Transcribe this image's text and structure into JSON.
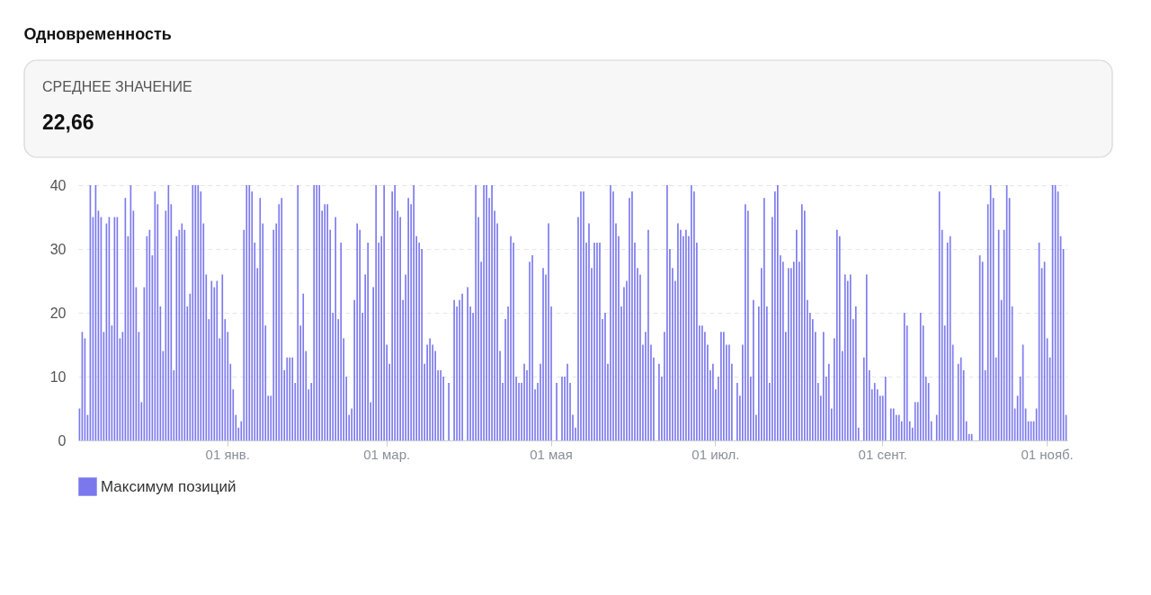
{
  "chart_data": {
    "type": "bar",
    "title": "Одновременность",
    "annotations": [
      "СРЕДНЕЕ ЗНАЧЕНИЕ",
      "22,66"
    ],
    "categories": [
      null,
      null,
      null,
      null,
      null,
      null,
      null,
      null,
      null,
      null,
      null,
      null,
      null,
      null,
      null,
      null,
      null,
      null,
      null,
      null,
      null,
      null,
      null,
      null,
      null,
      null,
      null,
      null,
      null,
      null,
      null,
      null,
      null,
      null,
      null,
      null,
      null,
      null,
      null,
      null,
      null,
      null,
      null,
      null,
      null,
      null,
      null,
      null,
      null,
      null,
      null,
      null,
      null,
      null,
      null,
      "01 янв.",
      null,
      null,
      null,
      null,
      null,
      null,
      null,
      null,
      null,
      null,
      null,
      null,
      null,
      null,
      null,
      null,
      null,
      null,
      null,
      null,
      null,
      null,
      null,
      null,
      null,
      null,
      null,
      null,
      null,
      null,
      null,
      null,
      null,
      null,
      null,
      null,
      null,
      null,
      null,
      null,
      null,
      null,
      null,
      null,
      null,
      null,
      null,
      null,
      null,
      null,
      null,
      null,
      null,
      null,
      null,
      null,
      null,
      null,
      "01 мар.",
      null,
      null,
      null,
      null,
      null,
      null,
      null,
      null,
      null,
      null,
      null,
      null,
      null,
      null,
      null,
      null,
      null,
      null,
      null,
      null,
      null,
      null,
      null,
      null,
      null,
      null,
      null,
      null,
      null,
      null,
      null,
      null,
      null,
      null,
      null,
      null,
      null,
      null,
      null,
      null,
      null,
      null,
      null,
      null,
      null,
      null,
      null,
      null,
      null,
      null,
      null,
      null,
      null,
      null,
      null,
      null,
      null,
      null,
      null,
      null,
      "01 мая",
      null,
      null,
      null,
      null,
      null,
      null,
      null,
      null,
      null,
      null,
      null,
      null,
      null,
      null,
      null,
      null,
      null,
      null,
      null,
      null,
      null,
      null,
      null,
      null,
      null,
      null,
      null,
      null,
      null,
      null,
      null,
      null,
      null,
      null,
      null,
      null,
      null,
      null,
      null,
      null,
      null,
      null,
      null,
      null,
      null,
      null,
      null,
      null,
      null,
      null,
      null,
      null,
      null,
      null,
      null,
      null,
      null,
      null,
      null,
      null,
      "01 июл.",
      null,
      null,
      null,
      null,
      null,
      null,
      null,
      null,
      null,
      null,
      null,
      null,
      null,
      null,
      null,
      null,
      null,
      null,
      null,
      null,
      null,
      null,
      null,
      null,
      null,
      null,
      null,
      null,
      null,
      null,
      null,
      null,
      null,
      null,
      null,
      null,
      null,
      null,
      null,
      null,
      null,
      null,
      null,
      null,
      null,
      null,
      null,
      null,
      null,
      null,
      null,
      null,
      null,
      null,
      null,
      null,
      null,
      null,
      null,
      null,
      null,
      "01 сент.",
      null,
      null,
      null,
      null,
      null,
      null,
      null,
      null,
      null,
      null,
      null,
      null,
      null,
      null,
      null,
      null,
      null,
      null,
      null,
      null,
      null,
      null,
      null,
      null,
      null,
      null,
      null,
      null,
      null,
      null,
      null,
      null,
      null,
      null,
      null,
      null,
      null,
      null,
      null,
      null,
      null,
      null,
      null,
      null,
      null,
      null,
      null,
      null,
      null,
      null,
      null,
      null,
      null,
      null,
      null,
      null,
      null,
      null,
      null,
      null,
      "01 нояб.",
      null,
      null,
      null,
      null,
      null,
      null,
      null
    ],
    "series": [
      {
        "name": "Максимум позиций",
        "color": "#7b78ee",
        "values": [
          5,
          17,
          16,
          4,
          40,
          35,
          40,
          36,
          35,
          17,
          34,
          35,
          18,
          35,
          35,
          16,
          17,
          38,
          32,
          40,
          36,
          24,
          17,
          6,
          24,
          32,
          33,
          29,
          39,
          37,
          21,
          14,
          36,
          40,
          37,
          11,
          32,
          33,
          34,
          33,
          21,
          23,
          40,
          40,
          40,
          39,
          34,
          26,
          19,
          25,
          24,
          25,
          16,
          26,
          19,
          17,
          12,
          8,
          4,
          2,
          3,
          33,
          40,
          40,
          39,
          31,
          27,
          38,
          34,
          18,
          7,
          7,
          33,
          34,
          37,
          38,
          11,
          13,
          13,
          13,
          9,
          40,
          18,
          23,
          14,
          8,
          9,
          40,
          40,
          40,
          36,
          37,
          37,
          33,
          20,
          35,
          19,
          31,
          16,
          10,
          4,
          5,
          22,
          34,
          33,
          20,
          26,
          31,
          6,
          24,
          40,
          31,
          32,
          40,
          15,
          12,
          39,
          40,
          36,
          35,
          22,
          26,
          38,
          37,
          40,
          32,
          31,
          30,
          12,
          15,
          16,
          15,
          14,
          11,
          11,
          10,
          0,
          9,
          0,
          22,
          21,
          22,
          23,
          0,
          24,
          21,
          20,
          40,
          35,
          28,
          40,
          40,
          38,
          40,
          36,
          34,
          14,
          9,
          19,
          21,
          32,
          31,
          10,
          9,
          9,
          12,
          11,
          28,
          29,
          8,
          9,
          12,
          27,
          26,
          34,
          21,
          0,
          9,
          0,
          10,
          10,
          12,
          9,
          4,
          2,
          35,
          39,
          39,
          31,
          34,
          27,
          31,
          31,
          31,
          19,
          20,
          12,
          40,
          39,
          34,
          32,
          21,
          24,
          25,
          38,
          39,
          31,
          27,
          26,
          15,
          17,
          33,
          15,
          13,
          0,
          12,
          10,
          17,
          40,
          30,
          27,
          25,
          34,
          33,
          32,
          33,
          32,
          40,
          39,
          31,
          18,
          18,
          17,
          15,
          11,
          12,
          8,
          10,
          17,
          17,
          15,
          15,
          12,
          0,
          9,
          7,
          15,
          37,
          36,
          10,
          22,
          4,
          21,
          27,
          38,
          21,
          9,
          35,
          39,
          40,
          29,
          28,
          17,
          27,
          27,
          28,
          33,
          28,
          37,
          36,
          22,
          20,
          19,
          17,
          9,
          7,
          17,
          10,
          12,
          5,
          16,
          33,
          32,
          14,
          26,
          25,
          26,
          19,
          21,
          2,
          0,
          13,
          26,
          11,
          8,
          9,
          8,
          7,
          7,
          10,
          0,
          5,
          5,
          4,
          4,
          3,
          20,
          18,
          3,
          2,
          6,
          6,
          20,
          18,
          10,
          9,
          3,
          0,
          4,
          39,
          33,
          18,
          31,
          32,
          15,
          0,
          12,
          13,
          11,
          3,
          1,
          1,
          0,
          0,
          29,
          28,
          11,
          37,
          40,
          38,
          13,
          33,
          22,
          33,
          40,
          38,
          21,
          5,
          7,
          10,
          15,
          5,
          3,
          3,
          3,
          5,
          31,
          27,
          28,
          16,
          13,
          40,
          40,
          39,
          32,
          30,
          4
        ]
      }
    ],
    "ylim": [
      0,
      40
    ],
    "yticks": [
      0,
      10,
      20,
      30,
      40
    ],
    "grid": "y",
    "legend": "bottom"
  }
}
